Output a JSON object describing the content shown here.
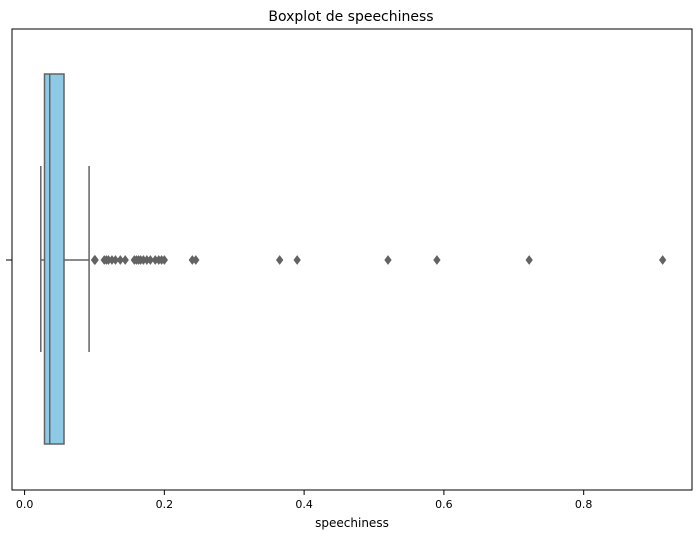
{
  "chart_data": {
    "type": "box",
    "title": "Boxplot de speechiness",
    "xlabel": "speechiness",
    "ylabel": "",
    "xlim": [
      -0.018,
      0.955
    ],
    "x_ticks": [
      0.0,
      0.2,
      0.4,
      0.6,
      0.8
    ],
    "x_tick_labels": [
      "0.0",
      "0.2",
      "0.4",
      "0.6",
      "0.8"
    ],
    "grid": false,
    "orientation": "horizontal",
    "box_color": "#8ecae6",
    "edge_color": "#636363",
    "box": {
      "whisker_low": 0.0232,
      "q1": 0.0285,
      "median": 0.036,
      "q3": 0.0564,
      "whisker_high": 0.0923
    },
    "outliers": [
      0.1,
      0.101,
      0.114,
      0.117,
      0.12,
      0.125,
      0.13,
      0.137,
      0.144,
      0.157,
      0.16,
      0.163,
      0.166,
      0.17,
      0.175,
      0.18,
      0.187,
      0.192,
      0.196,
      0.2,
      0.24,
      0.245,
      0.365,
      0.39,
      0.52,
      0.59,
      0.722,
      0.913
    ]
  }
}
